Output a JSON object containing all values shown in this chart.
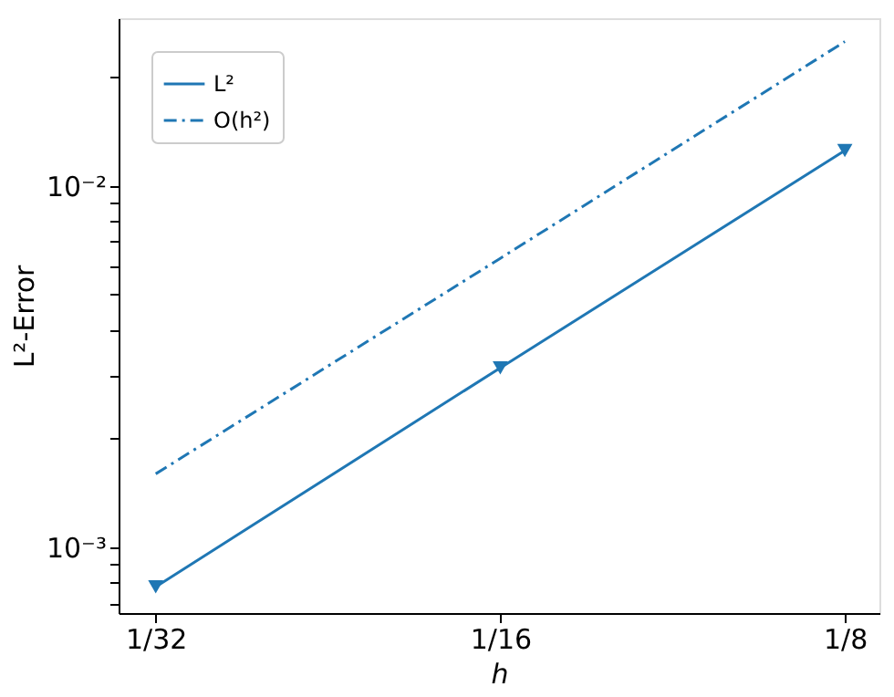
{
  "chart_data": {
    "type": "line",
    "xlabel": "h",
    "ylabel": "L²-Error",
    "x": [
      0.03125,
      0.0625,
      0.125
    ],
    "series": [
      {
        "name": "L²",
        "color": "#1f77b4",
        "values": [
          0.00078,
          0.00314,
          0.0125
        ],
        "marker": "triangle",
        "line_style": "solid"
      },
      {
        "name": "O(h²)",
        "color": "#1f77b4",
        "values": [
          0.0016,
          0.0063,
          0.025
        ],
        "marker": "none",
        "line_style": "dashed"
      }
    ],
    "log": "xy",
    "xlim": [
      0.029,
      0.134
    ],
    "ylim": [
      0.00066,
      0.029
    ],
    "xticks": [
      {
        "value": 0.03125,
        "label": "1/32"
      },
      {
        "value": 0.0625,
        "label": "1/16"
      },
      {
        "value": 0.125,
        "label": "1/8"
      }
    ],
    "yticks": [
      {
        "value": 0.0007,
        "label": null
      },
      {
        "value": 0.0008,
        "label": null
      },
      {
        "value": 0.0009,
        "label": null
      },
      {
        "value": 0.001,
        "label": "10⁻³"
      },
      {
        "value": 0.002,
        "label": null
      },
      {
        "value": 0.003,
        "label": null
      },
      {
        "value": 0.004,
        "label": null
      },
      {
        "value": 0.005,
        "label": null
      },
      {
        "value": 0.006,
        "label": null
      },
      {
        "value": 0.007,
        "label": null
      },
      {
        "value": 0.008,
        "label": null
      },
      {
        "value": 0.009,
        "label": null
      },
      {
        "value": 0.01,
        "label": "10⁻²"
      },
      {
        "value": 0.02,
        "label": null
      }
    ],
    "grid": false,
    "legend": "top left"
  }
}
